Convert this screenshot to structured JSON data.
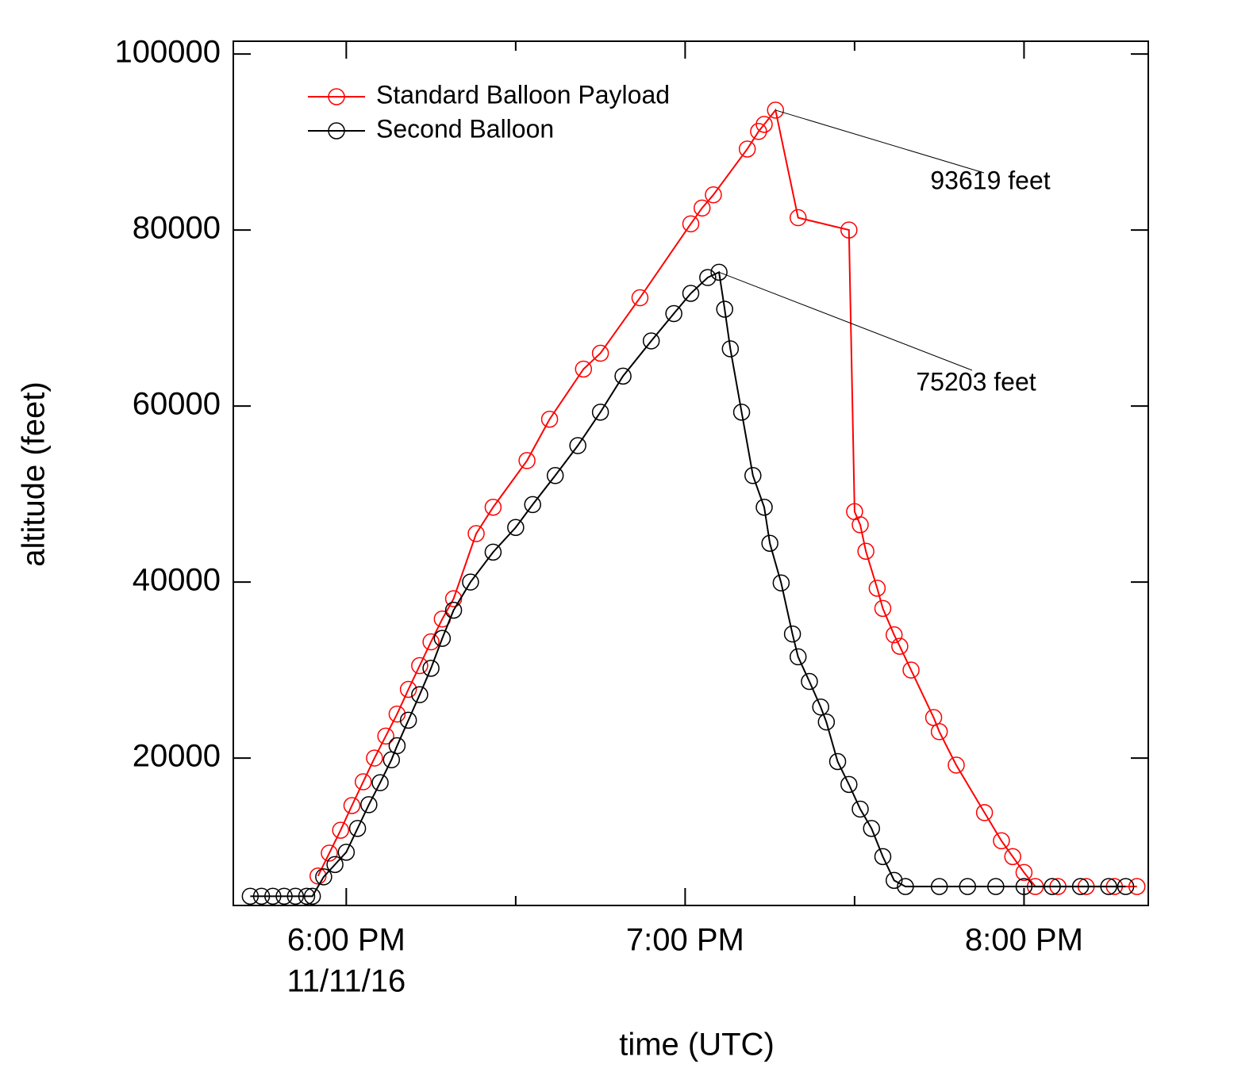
{
  "chart_data": {
    "type": "line",
    "xlabel": "time (UTC)",
    "ylabel": "altitude (feet)",
    "xlim": [
      "17:40",
      "20:22"
    ],
    "xticks": [
      {
        "value": "18:00",
        "label": "6:00 PM"
      },
      {
        "value": "19:00",
        "label": "7:00 PM"
      },
      {
        "value": "20:00",
        "label": "8:00 PM"
      }
    ],
    "xminorticks": [
      "18:30",
      "19:30"
    ],
    "x_date_label": "11/11/16",
    "ylim": [
      3250,
      101450
    ],
    "yticks": [
      20000,
      40000,
      60000,
      80000,
      100000
    ],
    "legend": "upper left",
    "series": [
      {
        "name": "Standard Balloon Payload",
        "color": "#ff0000",
        "x": [
          "17:55",
          "17:57",
          "17:59",
          "18:01",
          "18:03",
          "18:05",
          "18:07",
          "18:09",
          "18:11",
          "18:13",
          "18:15",
          "18:17",
          "18:19",
          "18:23",
          "18:26",
          "18:32",
          "18:36",
          "18:42",
          "18:45",
          "18:52",
          "19:01",
          "19:03",
          "19:05",
          "19:11",
          "19:13",
          "19:14",
          "19:16",
          "19:20",
          "19:29",
          "19:30",
          "19:31",
          "19:32",
          "19:34",
          "19:35",
          "19:37",
          "19:38",
          "19:40",
          "19:44",
          "19:45",
          "19:48",
          "19:53",
          "19:56",
          "19:58",
          "20:00",
          "20:02",
          "20:06",
          "20:11",
          "20:16",
          "20:20"
        ],
        "values": [
          6600,
          9200,
          11800,
          14600,
          17300,
          20000,
          22500,
          25000,
          27800,
          30500,
          33200,
          35800,
          38100,
          45500,
          48500,
          53800,
          58500,
          64200,
          66000,
          72300,
          80700,
          82500,
          84000,
          89200,
          91200,
          92000,
          93619,
          81400,
          80000,
          48000,
          46500,
          43500,
          39300,
          37000,
          34000,
          32700,
          30000,
          24600,
          23000,
          19200,
          13800,
          10600,
          8800,
          7000,
          5400,
          5400,
          5400,
          5400,
          5400
        ]
      },
      {
        "name": "Second Balloon",
        "color": "#000000",
        "x": [
          "17:43",
          "17:45",
          "17:47",
          "17:49",
          "17:51",
          "17:53",
          "17:54",
          "17:56",
          "17:58",
          "18:00",
          "18:02",
          "18:04",
          "18:06",
          "18:08",
          "18:09",
          "18:11",
          "18:13",
          "18:15",
          "18:17",
          "18:19",
          "18:22",
          "18:26",
          "18:30",
          "18:33",
          "18:37",
          "18:41",
          "18:45",
          "18:49",
          "18:54",
          "18:58",
          "19:01",
          "19:04",
          "19:06",
          "19:07",
          "19:08",
          "19:10",
          "19:12",
          "19:14",
          "19:15",
          "19:17",
          "19:19",
          "19:20",
          "19:22",
          "19:24",
          "19:25",
          "19:27",
          "19:29",
          "19:31",
          "19:33",
          "19:35",
          "19:37",
          "19:39",
          "19:45",
          "19:50",
          "19:55",
          "20:00",
          "20:05",
          "20:10",
          "20:15",
          "20:18"
        ],
        "values": [
          4300,
          4300,
          4300,
          4300,
          4300,
          4300,
          4300,
          6500,
          7900,
          9300,
          12000,
          14700,
          17200,
          19800,
          21400,
          24300,
          27200,
          30200,
          33600,
          36800,
          40000,
          43400,
          46200,
          48800,
          52100,
          55500,
          59300,
          63400,
          67400,
          70500,
          72800,
          74600,
          75203,
          71000,
          66500,
          59300,
          52100,
          48500,
          44400,
          39900,
          34100,
          31500,
          28700,
          25800,
          24100,
          19600,
          17000,
          14200,
          12000,
          8800,
          6100,
          5400,
          5400,
          5400,
          5400,
          5400,
          5400,
          5400,
          5400,
          5400
        ]
      }
    ],
    "annotations": [
      {
        "text": "93619 feet"
      },
      {
        "text": "75203 feet"
      }
    ]
  }
}
